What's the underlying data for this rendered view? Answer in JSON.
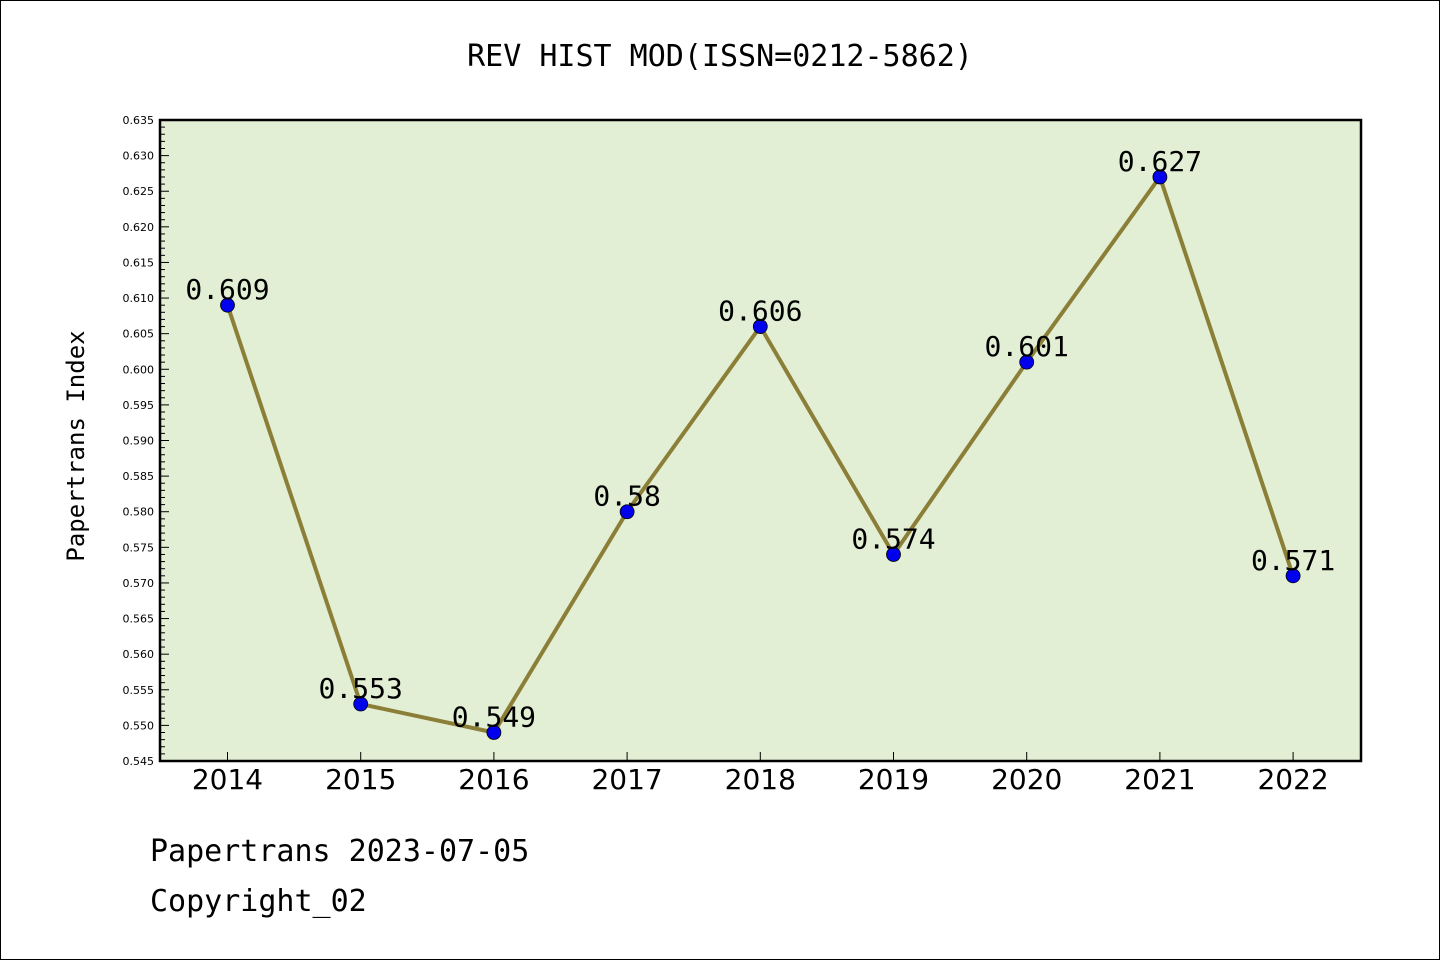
{
  "chart_data": {
    "type": "line",
    "title": "REV HIST MOD(ISSN=0212-5862)",
    "xlabel": "",
    "ylabel": "Papertrans Index",
    "categories": [
      "2014",
      "2015",
      "2016",
      "2017",
      "2018",
      "2019",
      "2020",
      "2021",
      "2022"
    ],
    "series": [
      {
        "values": [
          0.609,
          0.553,
          0.549,
          0.58,
          0.606,
          0.574,
          0.601,
          0.627,
          0.571
        ],
        "labels": [
          "0.609",
          "0.553",
          "0.549",
          "0.58",
          "0.606",
          "0.574",
          "0.601",
          "0.627",
          "0.571"
        ]
      }
    ],
    "ylim": [
      0.545,
      0.635
    ],
    "yticks": [
      "0.545",
      "0.550",
      "0.555",
      "0.560",
      "0.565",
      "0.570",
      "0.575",
      "0.580",
      "0.585",
      "0.590",
      "0.595",
      "0.600",
      "0.605",
      "0.610",
      "0.615",
      "0.620",
      "0.625",
      "0.630",
      "0.635"
    ],
    "grid": false,
    "legend": "none",
    "colors": {
      "plot_background": "#e2efd5",
      "line": "#8b7f38",
      "marker": "#0000ee",
      "axis": "#000000"
    }
  },
  "footer": {
    "line1": "Papertrans 2023-07-05",
    "line2": "Copyright_02"
  }
}
